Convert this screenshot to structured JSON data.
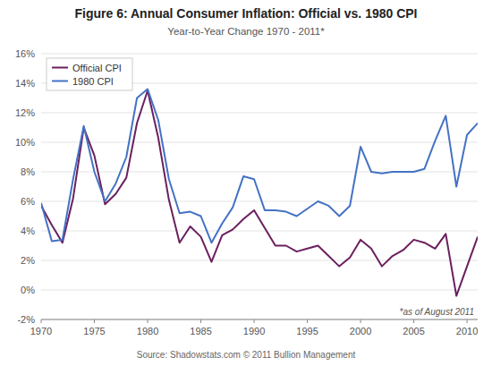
{
  "chart_data": {
    "type": "line",
    "title": "Figure 6: Annual Consumer Inflation: Official vs. 1980 CPI",
    "subtitle": "Year-to-Year Change 1970 - 2011*",
    "annotations": [
      "*as of August 2011",
      "Source: Shadowstats.com © 2011 Bullion Management"
    ],
    "x": [
      1970,
      1971,
      1972,
      1973,
      1974,
      1975,
      1976,
      1977,
      1978,
      1979,
      1980,
      1981,
      1982,
      1983,
      1984,
      1985,
      1986,
      1987,
      1988,
      1989,
      1990,
      1991,
      1992,
      1993,
      1994,
      1995,
      1996,
      1997,
      1998,
      1999,
      2000,
      2001,
      2002,
      2003,
      2004,
      2005,
      2006,
      2007,
      2008,
      2009,
      2010,
      2011
    ],
    "series": [
      {
        "name": "Official CPI",
        "color": "#6B1F5E",
        "values": [
          5.7,
          4.4,
          3.2,
          6.2,
          11.0,
          9.1,
          5.8,
          6.5,
          7.6,
          11.3,
          13.5,
          10.3,
          6.1,
          3.2,
          4.3,
          3.6,
          1.9,
          3.7,
          4.1,
          4.8,
          5.4,
          4.2,
          3.0,
          3.0,
          2.6,
          2.8,
          3.0,
          2.3,
          1.6,
          2.2,
          3.4,
          2.8,
          1.6,
          2.3,
          2.7,
          3.4,
          3.2,
          2.8,
          3.8,
          -0.4,
          1.6,
          3.6
        ]
      },
      {
        "name": "1980 CPI",
        "color": "#4472C4",
        "values": [
          5.9,
          3.3,
          3.4,
          7.5,
          11.1,
          8.0,
          6.0,
          7.2,
          9.0,
          13.0,
          13.6,
          11.5,
          7.5,
          5.2,
          5.3,
          5.0,
          3.2,
          4.5,
          5.6,
          7.7,
          7.5,
          5.4,
          5.4,
          5.3,
          5.0,
          5.5,
          6.0,
          5.7,
          5.0,
          5.7,
          9.7,
          8.0,
          7.9,
          8.0,
          8.0,
          8.0,
          8.2,
          10.1,
          11.8,
          7.0,
          10.5,
          11.3
        ]
      }
    ],
    "xlim": [
      1970,
      2011
    ],
    "xticks": [
      1970,
      1975,
      1980,
      1985,
      1990,
      1995,
      2000,
      2005,
      2010
    ],
    "ylim": [
      -2,
      16
    ],
    "yticks": [
      {
        "value": -2,
        "label": "-2%"
      },
      {
        "value": 0,
        "label": "0%"
      },
      {
        "value": 2,
        "label": "2%"
      },
      {
        "value": 4,
        "label": "4%"
      },
      {
        "value": 6,
        "label": "6%"
      },
      {
        "value": 8,
        "label": "8%"
      },
      {
        "value": 10,
        "label": "10%"
      },
      {
        "value": 12,
        "label": "12%"
      },
      {
        "value": 14,
        "label": "14%"
      },
      {
        "value": 16,
        "label": "16%"
      }
    ],
    "grid": true,
    "legend": "upper left"
  }
}
